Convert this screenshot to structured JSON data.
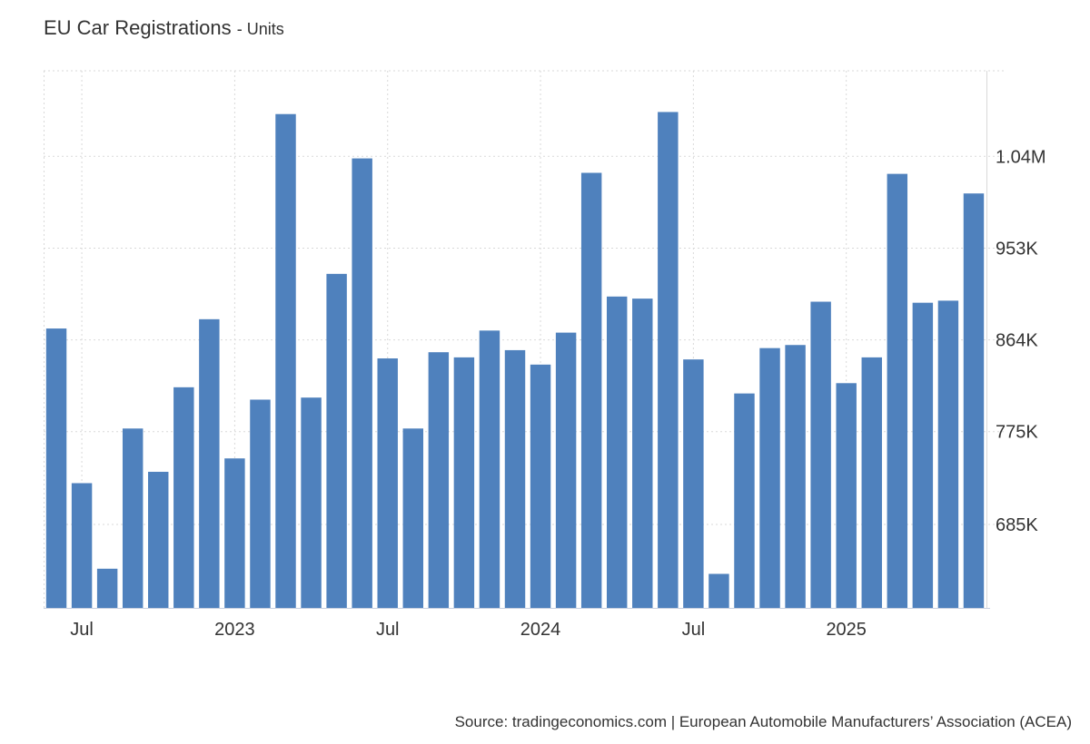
{
  "header": {
    "title": "EU Car Registrations",
    "unit": "Units"
  },
  "footer": {
    "source": "Source: tradingeconomics.com | European Automobile Manufacturers’ Association (ACEA)"
  },
  "colors": {
    "bar": "#4f81bd",
    "grid": "#d9d9d9",
    "axis_text": "#333333"
  },
  "chart_data": {
    "type": "bar",
    "categories": [
      "2022-06",
      "2022-07",
      "2022-08",
      "2022-09",
      "2022-10",
      "2022-11",
      "2022-12",
      "2023-01",
      "2023-02",
      "2023-03",
      "2023-04",
      "2023-05",
      "2023-06",
      "2023-07",
      "2023-08",
      "2023-09",
      "2023-10",
      "2023-11",
      "2023-12",
      "2024-01",
      "2024-02",
      "2024-03",
      "2024-04",
      "2024-05",
      "2024-06",
      "2024-07",
      "2024-08",
      "2024-09",
      "2024-10",
      "2024-11",
      "2024-12",
      "2025-01",
      "2025-02",
      "2025-03",
      "2025-04",
      "2025-05",
      "2025-06"
    ],
    "values": [
      875000,
      725000,
      642000,
      778000,
      736000,
      818000,
      884000,
      749000,
      806000,
      1083000,
      808000,
      928000,
      1040000,
      846000,
      778000,
      852000,
      847000,
      873000,
      854000,
      840000,
      871000,
      1026000,
      906000,
      904000,
      1085000,
      845000,
      637000,
      812000,
      856000,
      859000,
      901000,
      822000,
      847000,
      1025000,
      900000,
      902000,
      1006000
    ],
    "x_tick_labels": [
      {
        "category": "2022-07",
        "label": "Jul"
      },
      {
        "category": "2023-01",
        "label": "2023"
      },
      {
        "category": "2023-07",
        "label": "Jul"
      },
      {
        "category": "2024-01",
        "label": "2024"
      },
      {
        "category": "2024-07",
        "label": "Jul"
      },
      {
        "category": "2025-01",
        "label": "2025"
      }
    ],
    "y_ticks": [
      {
        "value": 685000,
        "label": "685K"
      },
      {
        "value": 775000,
        "label": "775K"
      },
      {
        "value": 864000,
        "label": "864K"
      },
      {
        "value": 953000,
        "label": "953K"
      },
      {
        "value": 1042000,
        "label": "1.04M"
      }
    ],
    "ylim": [
      604000,
      1125000
    ],
    "grid": true,
    "y_axis_side": "right",
    "legend": "none"
  }
}
